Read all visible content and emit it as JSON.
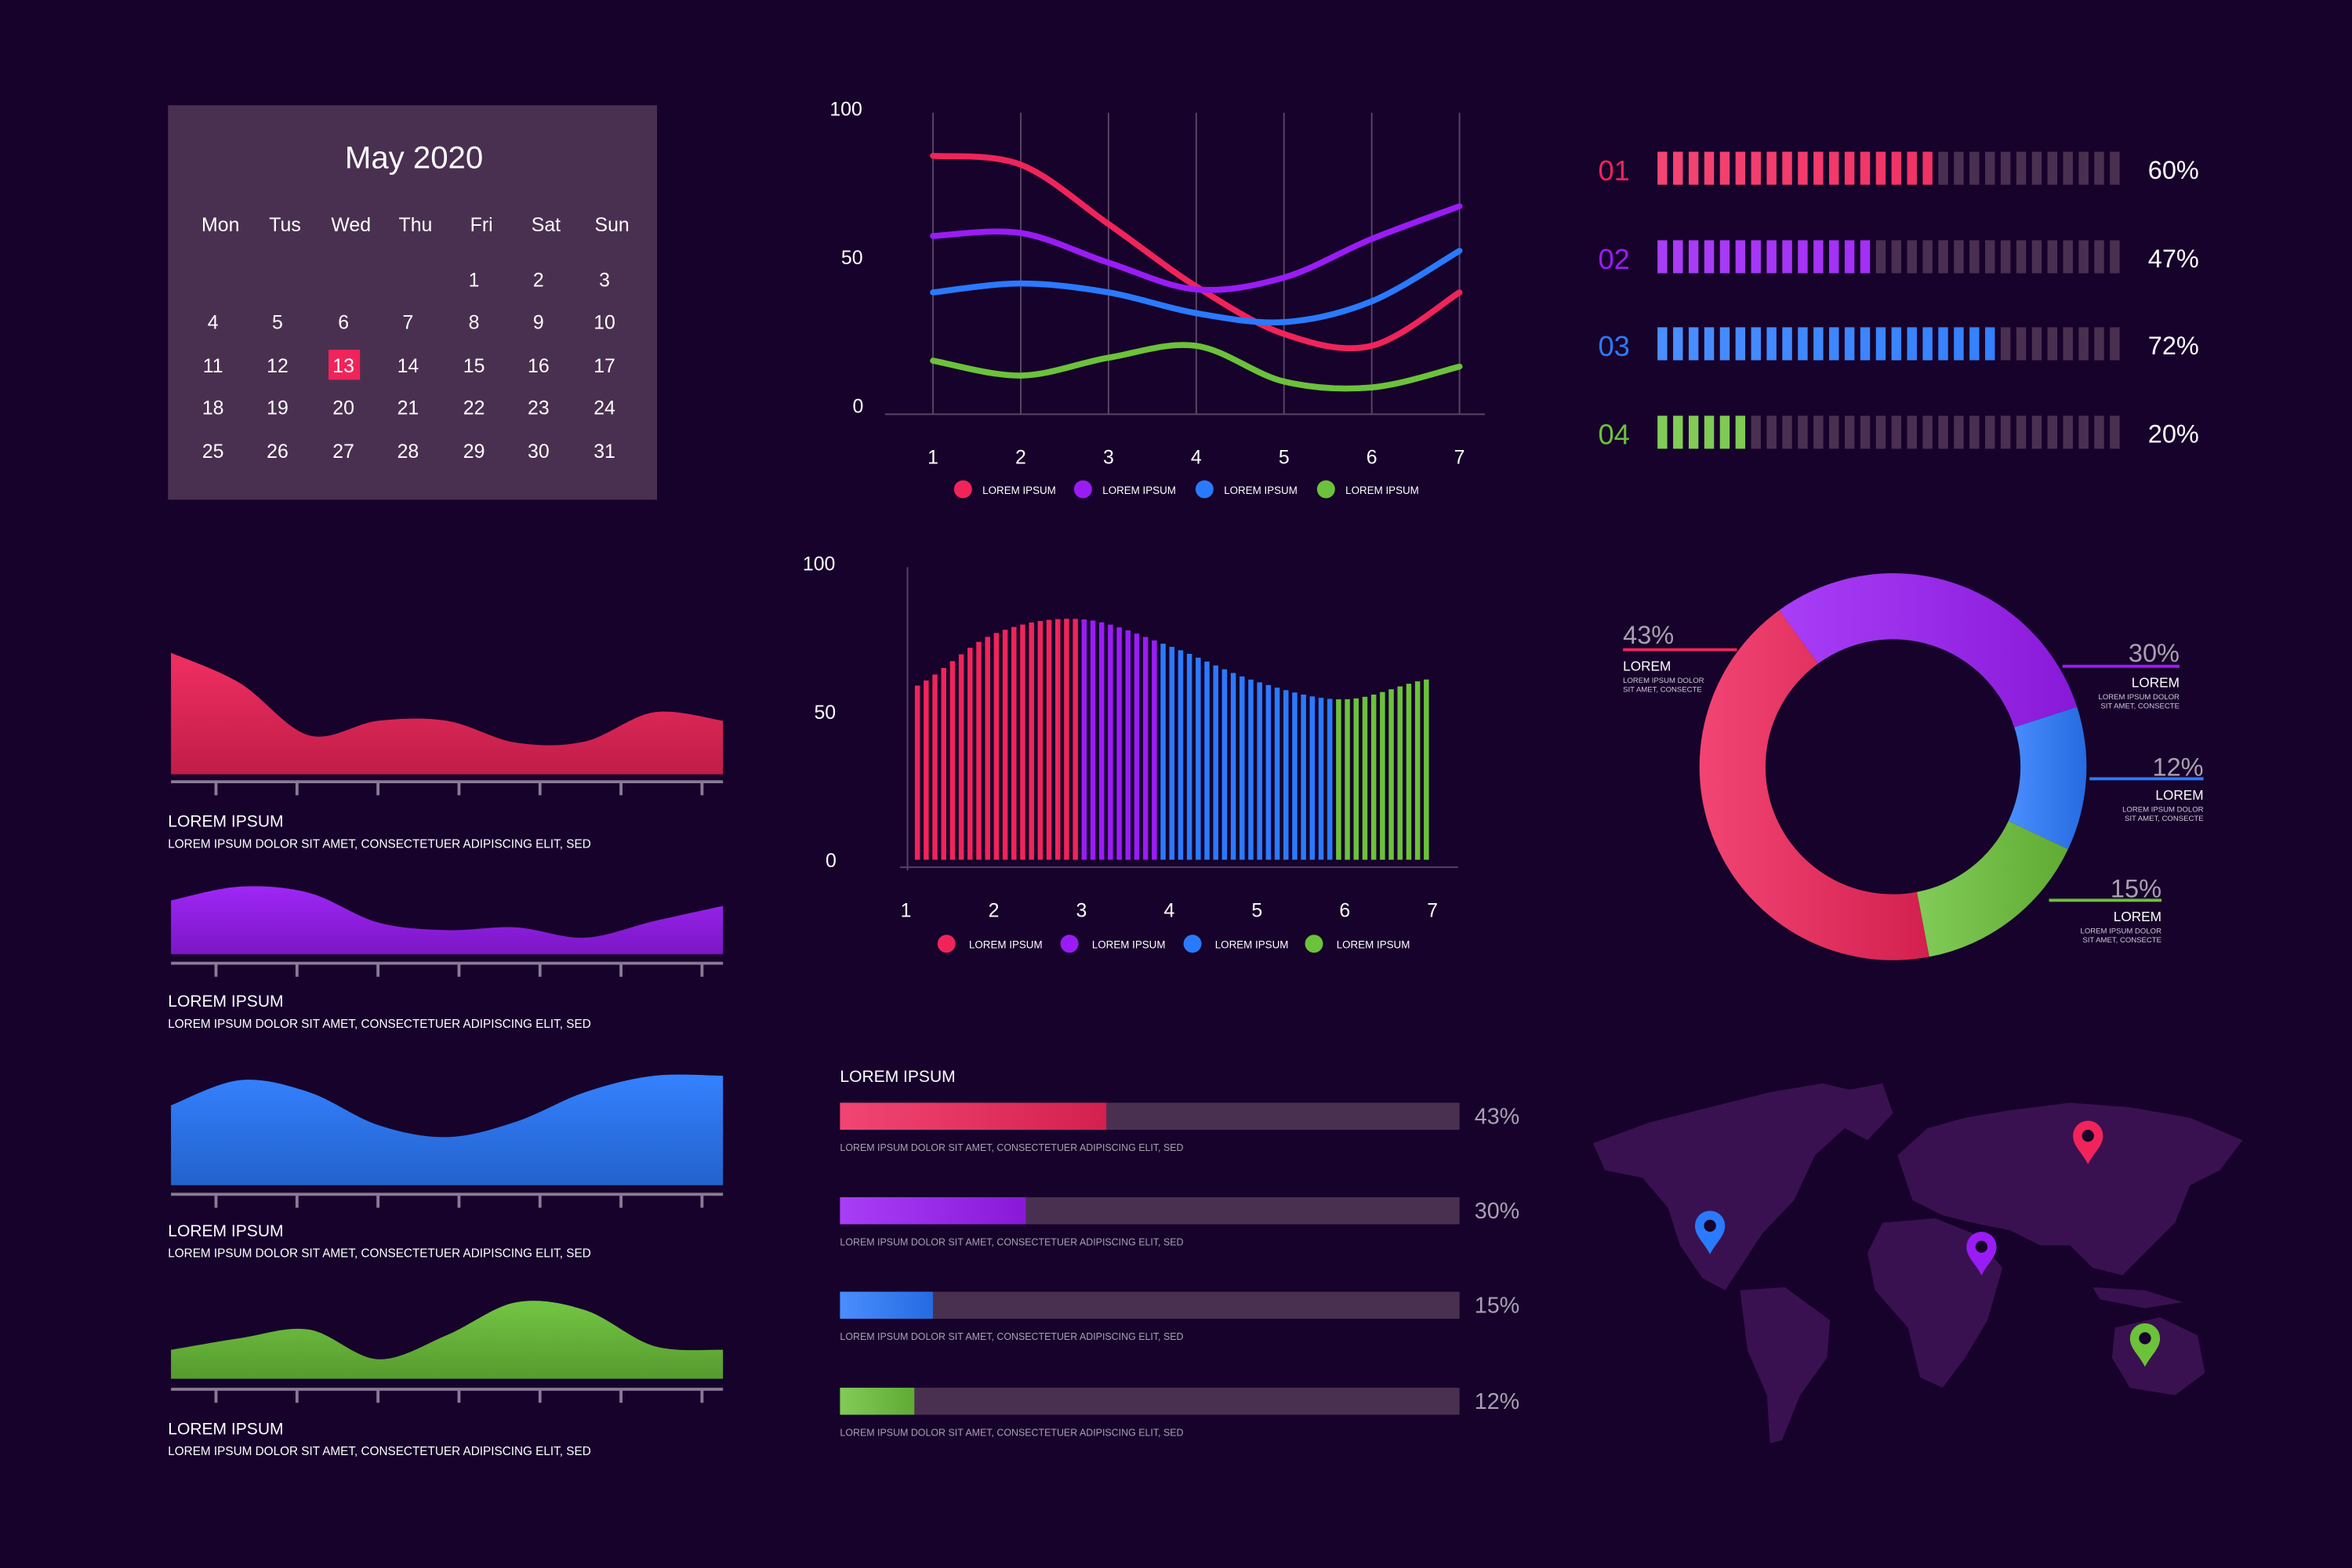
{
  "colors": {
    "background": "#17022b",
    "panel": "#4a3050",
    "red": "#f0245a",
    "purple": "#9a1cf5",
    "blue": "#2a7aff",
    "green": "#6cc23a",
    "track": "#4a3050",
    "map": "#3a1150"
  },
  "calendar": {
    "title": "May 2020",
    "weekdays": [
      "Mon",
      "Tus",
      "Wed",
      "Thu",
      "Fri",
      "Sat",
      "Sun"
    ],
    "weeks": [
      [
        null,
        null,
        null,
        null,
        1,
        2,
        3
      ],
      [
        4,
        5,
        6,
        7,
        8,
        9,
        10
      ],
      [
        11,
        12,
        13,
        14,
        15,
        16,
        17
      ],
      [
        18,
        19,
        20,
        21,
        22,
        23,
        24
      ],
      [
        25,
        26,
        27,
        28,
        29,
        30,
        31
      ]
    ],
    "selected": 13
  },
  "chart_data": [
    {
      "type": "line",
      "x": [
        1,
        2,
        3,
        4,
        5,
        6,
        7
      ],
      "ylim": [
        0,
        100
      ],
      "yticks": [
        "100",
        "50",
        "0"
      ],
      "xticks": [
        "1",
        "2",
        "3",
        "4",
        "5",
        "6",
        "7"
      ],
      "grid": "vertical",
      "legend_position": "bottom",
      "series": [
        {
          "name": "LOREM IPSUM",
          "color": "#f0245a",
          "values": [
            84,
            81,
            61,
            40,
            24,
            20,
            38
          ]
        },
        {
          "name": "LOREM IPSUM",
          "color": "#9a1cf5",
          "values": [
            57,
            58,
            48,
            39,
            43,
            56,
            67
          ]
        },
        {
          "name": "LOREM IPSUM",
          "color": "#2a7aff",
          "values": [
            38,
            41,
            38,
            31,
            28,
            35,
            52
          ]
        },
        {
          "name": "LOREM IPSUM",
          "color": "#6cc23a",
          "values": [
            15,
            10,
            16,
            20,
            8,
            6,
            13
          ]
        }
      ]
    },
    {
      "type": "bar",
      "x": [
        1,
        2,
        3,
        4,
        5,
        6,
        7
      ],
      "envelope": [
        57,
        76,
        81,
        72,
        60,
        54,
        61
      ],
      "ylim": [
        0,
        100
      ],
      "yticks": [
        "100",
        "50",
        "0"
      ],
      "xticks": [
        "1",
        "2",
        "3",
        "4",
        "5",
        "6",
        "7"
      ],
      "legend_position": "bottom",
      "series": [
        {
          "name": "LOREM IPSUM",
          "color": "#f0245a",
          "x_range": [
            1.1,
            3.0
          ]
        },
        {
          "name": "LOREM IPSUM",
          "color": "#9a1cf5",
          "x_range": [
            3.0,
            3.9
          ]
        },
        {
          "name": "LOREM IPSUM",
          "color": "#2a7aff",
          "x_range": [
            3.9,
            5.9
          ]
        },
        {
          "name": "LOREM IPSUM",
          "color": "#6cc23a",
          "x_range": [
            5.9,
            7.0
          ]
        }
      ]
    },
    {
      "type": "pie",
      "donut": true,
      "slices": [
        {
          "value": 30,
          "label": "30%",
          "title": "LOREM",
          "desc1": "LOREM IPSUM DOLOR",
          "desc2": "SIT AMET, CONSECTE",
          "color": "#9a1cf5"
        },
        {
          "value": 12,
          "label": "12%",
          "title": "LOREM",
          "desc1": "LOREM IPSUM DOLOR",
          "desc2": "SIT AMET, CONSECTE",
          "color": "#2a7aff"
        },
        {
          "value": 15,
          "label": "15%",
          "title": "LOREM",
          "desc1": "LOREM IPSUM DOLOR",
          "desc2": "SIT AMET, CONSECTE",
          "color": "#6cc23a"
        },
        {
          "value": 43,
          "label": "43%",
          "title": "LOREM",
          "desc1": "LOREM IPSUM DOLOR",
          "desc2": "SIT AMET, CONSECTE",
          "color": "#f0245a"
        }
      ]
    },
    {
      "type": "bar",
      "style": "segmented",
      "rows": [
        {
          "label": "01",
          "value": 60,
          "text": "60%",
          "color": "#f0245a"
        },
        {
          "label": "02",
          "value": 47,
          "text": "47%",
          "color": "#9a1cf5"
        },
        {
          "label": "03",
          "value": 72,
          "text": "72%",
          "color": "#2a7aff"
        },
        {
          "label": "04",
          "value": 20,
          "text": "20%",
          "color": "#6cc23a"
        }
      ]
    },
    {
      "type": "bar",
      "style": "progress",
      "title": "LOREM IPSUM",
      "rows": [
        {
          "value": 43,
          "text": "43%",
          "desc": "LOREM IPSUM DOLOR SIT AMET, CONSECTETUER ADIPISCING ELIT, SED",
          "color": "#f0245a"
        },
        {
          "value": 30,
          "text": "30%",
          "desc": "LOREM IPSUM DOLOR SIT AMET, CONSECTETUER ADIPISCING ELIT, SED",
          "color": "#9a1cf5"
        },
        {
          "value": 15,
          "text": "15%",
          "desc": "LOREM IPSUM DOLOR SIT AMET, CONSECTETUER ADIPISCING ELIT, SED",
          "color": "#2a7aff"
        },
        {
          "value": 12,
          "text": "12%",
          "desc": "LOREM IPSUM DOLOR SIT AMET, CONSECTETUER ADIPISCING ELIT, SED",
          "color": "#6cc23a"
        }
      ]
    },
    {
      "type": "area",
      "panels": [
        {
          "title": "LOREM IPSUM",
          "desc": "LOREM IPSUM DOLOR SIT AMET, CONSECTETUER ADIPISCING ELIT, SED",
          "color": "#f0245a",
          "values": [
            100,
            75,
            32,
            44,
            44,
            26,
            27,
            51,
            44
          ]
        },
        {
          "title": "LOREM IPSUM",
          "desc": "LOREM IPSUM DOLOR SIT AMET, CONSECTETUER ADIPISCING ELIT, SED",
          "color": "#9a1cf5",
          "values": [
            78,
            98,
            89,
            46,
            35,
            39,
            24,
            48,
            70
          ]
        },
        {
          "title": "LOREM IPSUM",
          "desc": "LOREM IPSUM DOLOR SIT AMET, CONSECTETUER ADIPISCING ELIT, SED",
          "color": "#2a7aff",
          "values": [
            73,
            96,
            85,
            55,
            44,
            58,
            85,
            100,
            100
          ]
        },
        {
          "title": "LOREM IPSUM",
          "desc": "LOREM IPSUM DOLOR SIT AMET, CONSECTETUER ADIPISCING ELIT, SED",
          "color": "#6cc23a",
          "values": [
            37,
            52,
            63,
            25,
            56,
            98,
            88,
            42,
            37
          ]
        }
      ]
    }
  ],
  "map": {
    "pins": [
      {
        "name": "pin-red",
        "color": "#f0245a"
      },
      {
        "name": "pin-blue",
        "color": "#2a7aff"
      },
      {
        "name": "pin-purple",
        "color": "#9a1cf5"
      },
      {
        "name": "pin-green",
        "color": "#6cc23a"
      }
    ]
  }
}
